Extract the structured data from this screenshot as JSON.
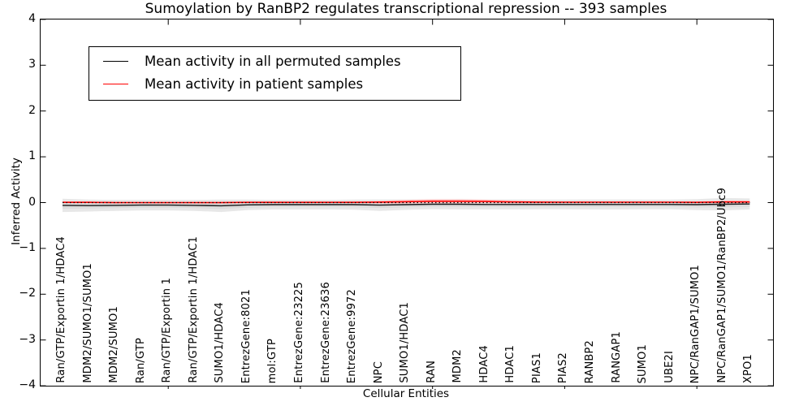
{
  "title": "Sumoylation by RanBP2 regulates transcriptional repression -- 393 samples",
  "axes": {
    "x_label": "Cellular Entities",
    "y_label": "Inferred Activity"
  },
  "legend": {
    "entries": [
      {
        "label": "Mean activity in all permuted samples",
        "color": "#000000"
      },
      {
        "label": "Mean activity in patient samples",
        "color": "#ff0000"
      }
    ]
  },
  "colors": {
    "permuted_line": "#1a1a1a",
    "patient_line": "#ff0000",
    "permuted_band_outer": "#e7e7e7",
    "permuted_band_inner": "#dbdbdb",
    "patient_band": "#ffc9c9",
    "zero_line": "#000000",
    "frame": "#000000"
  },
  "chart_data": {
    "type": "line",
    "title": "Sumoylation by RanBP2 regulates transcriptional repression -- 393 samples",
    "xlabel": "Cellular Entities",
    "ylabel": "Inferred Activity",
    "ylim": [
      -4,
      4
    ],
    "grid": false,
    "legend_position": "upper left",
    "zero_line": {
      "y": 0,
      "style": "dotted"
    },
    "y_ticks": [
      4,
      3,
      2,
      1,
      0,
      -1,
      -2,
      -3,
      -4
    ],
    "y_tick_labels": [
      "4",
      "3",
      "2",
      "1",
      "0",
      "−1",
      "−2",
      "−3",
      "−4"
    ],
    "x_major_tick_categories": [
      5,
      10,
      15,
      20,
      25
    ],
    "categories": [
      "Ran/GTP/Exportin 1/HDAC4",
      "MDM2/SUMO1/SUMO1",
      "MDM2/SUMO1",
      "Ran/GTP",
      "Ran/GTP/Exportin 1",
      "Ran/GTP/Exportin 1/HDAC1",
      "SUMO1/HDAC4",
      "EntrezGene:8021",
      "mol:GTP",
      "EntrezGene:23225",
      "EntrezGene:23636",
      "EntrezGene:9972",
      "NPC",
      "SUMO1/HDAC1",
      "RAN",
      "MDM2",
      "HDAC4",
      "HDAC1",
      "PIAS1",
      "PIAS2",
      "RANBP2",
      "RANGAP1",
      "SUMO1",
      "UBE2I",
      "NPC/RanGAP1/SUMO1",
      "NPC/RanGAP1/SUMO1/RanBP2/Ubc9",
      "XPO1"
    ],
    "series": [
      {
        "name": "Mean activity in all permuted samples",
        "color": "#1a1a1a",
        "values": [
          -0.06,
          -0.065,
          -0.06,
          -0.055,
          -0.055,
          -0.06,
          -0.07,
          -0.05,
          -0.045,
          -0.045,
          -0.045,
          -0.045,
          -0.055,
          -0.045,
          -0.035,
          -0.035,
          -0.04,
          -0.04,
          -0.04,
          -0.04,
          -0.04,
          -0.04,
          -0.04,
          -0.04,
          -0.045,
          -0.035,
          -0.03
        ],
        "band_halfwidth": [
          0.145,
          0.13,
          0.12,
          0.115,
          0.115,
          0.12,
          0.135,
          0.115,
          0.105,
          0.105,
          0.105,
          0.11,
          0.125,
          0.115,
          0.11,
          0.115,
          0.11,
          0.11,
          0.105,
          0.105,
          0.11,
          0.11,
          0.105,
          0.105,
          0.12,
          0.135,
          0.12
        ]
      },
      {
        "name": "Mean activity in patient samples",
        "color": "#ff0000",
        "values": [
          0.005,
          0.005,
          0.0,
          0.0,
          0.0,
          0.0,
          0.0,
          0.005,
          0.005,
          0.005,
          0.005,
          0.005,
          0.01,
          0.02,
          0.03,
          0.03,
          0.025,
          0.015,
          0.01,
          0.008,
          0.008,
          0.008,
          0.008,
          0.008,
          0.005,
          0.015,
          0.015
        ],
        "band_halfwidth": [
          0.02,
          0.02,
          0.018,
          0.016,
          0.016,
          0.018,
          0.02,
          0.015,
          0.014,
          0.014,
          0.014,
          0.016,
          0.028,
          0.04,
          0.046,
          0.046,
          0.04,
          0.03,
          0.02,
          0.016,
          0.016,
          0.016,
          0.016,
          0.016,
          0.02,
          0.03,
          0.026
        ]
      }
    ]
  }
}
